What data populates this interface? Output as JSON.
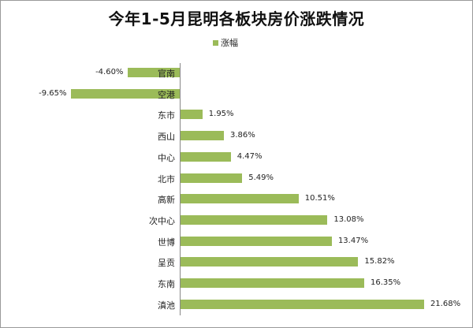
{
  "chart_data": {
    "type": "bar",
    "orientation": "horizontal",
    "title": "今年1-5月昆明各板块房价涨跌情况",
    "legend": [
      "涨幅"
    ],
    "legend_position": "top",
    "grid": false,
    "xlabel": "",
    "ylabel": "",
    "categories": [
      "官南",
      "空港",
      "东市",
      "西山",
      "中心",
      "北市",
      "高新",
      "次中心",
      "世博",
      "呈贡",
      "东南",
      "滇池"
    ],
    "values": [
      -4.6,
      -9.65,
      1.95,
      3.86,
      4.47,
      5.49,
      10.51,
      13.08,
      13.47,
      15.82,
      16.35,
      21.68
    ],
    "labels": [
      "-4.60%",
      "-9.65%",
      "1.95%",
      "3.86%",
      "4.47%",
      "5.49%",
      "10.51%",
      "13.08%",
      "13.47%",
      "15.82%",
      "16.35%",
      "21.68%"
    ],
    "series": [
      {
        "name": "涨幅",
        "color": "#9bbb59",
        "values": [
          -4.6,
          -9.65,
          1.95,
          3.86,
          4.47,
          5.49,
          10.51,
          13.08,
          13.47,
          15.82,
          16.35,
          21.68
        ]
      }
    ]
  }
}
